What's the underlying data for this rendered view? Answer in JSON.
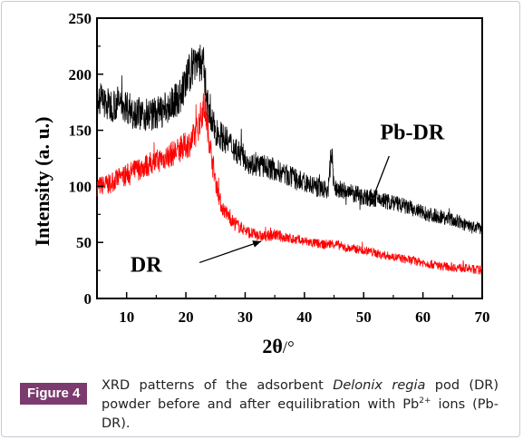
{
  "chart_data": {
    "type": "line",
    "xlabel_prefix": "2θ",
    "xlabel_suffix": "/°",
    "ylabel": "Intensity (a. u.)",
    "xlim": [
      5,
      70
    ],
    "ylim": [
      0,
      250
    ],
    "xticks": [
      10,
      20,
      30,
      40,
      50,
      60,
      70
    ],
    "yticks": [
      0,
      50,
      100,
      150,
      200,
      250
    ],
    "grid": false,
    "series": [
      {
        "name": "Pb-DR",
        "color": "#000000",
        "x": [
          5,
          7,
          9,
          11,
          13,
          15,
          17,
          19,
          20,
          21,
          22,
          23,
          24,
          25,
          27,
          29,
          31,
          33,
          35,
          37,
          39,
          41,
          43,
          44,
          44.6,
          45,
          47,
          49,
          51,
          53,
          55,
          57,
          59,
          61,
          63,
          65,
          67,
          69,
          70
        ],
        "y": [
          180,
          172,
          175,
          168,
          163,
          165,
          170,
          180,
          192,
          207,
          215,
          205,
          160,
          150,
          140,
          130,
          120,
          118,
          115,
          110,
          105,
          101,
          98,
          96,
          133,
          98,
          95,
          92,
          90,
          88,
          85,
          82,
          78,
          75,
          73,
          70,
          66,
          63,
          62
        ]
      },
      {
        "name": "DR",
        "color": "#ff0000",
        "x": [
          5,
          7,
          9,
          11,
          13,
          15,
          17,
          19,
          21,
          22,
          22.8,
          23.2,
          24,
          25,
          26,
          27,
          28,
          29,
          31,
          33,
          35,
          37,
          39,
          41,
          43,
          45,
          47,
          49,
          51,
          53,
          55,
          57,
          59,
          61,
          63,
          65,
          67,
          70
        ],
        "y": [
          100,
          102,
          108,
          113,
          118,
          122,
          127,
          133,
          140,
          152,
          168,
          172,
          140,
          105,
          82,
          75,
          68,
          64,
          58,
          55,
          57,
          54,
          52,
          50,
          48,
          49,
          45,
          44,
          42,
          39,
          37,
          35,
          33,
          31,
          29,
          28,
          27,
          25
        ]
      }
    ],
    "annotations": [
      {
        "text": "Pb-DR",
        "label_x": 58.2,
        "label_y": 142,
        "arrow_to": [
          51.0,
          82.0
        ],
        "arrow_from": [
          54.3,
          127.0
        ]
      },
      {
        "text": "DR",
        "label_x": 13.3,
        "label_y": 24,
        "arrow_to": [
          32.7,
          51.0
        ],
        "arrow_from": [
          22.3,
          32.0
        ]
      }
    ]
  },
  "caption": {
    "label": "Figure 4",
    "text_before": "XRD patterns  of the adsorbent ",
    "text_italic": "Delonix regia",
    "text_mid": " pod (DR) powder before and after equilibration with Pb",
    "superscript": "2+",
    "text_after": " ions (Pb-DR)."
  }
}
